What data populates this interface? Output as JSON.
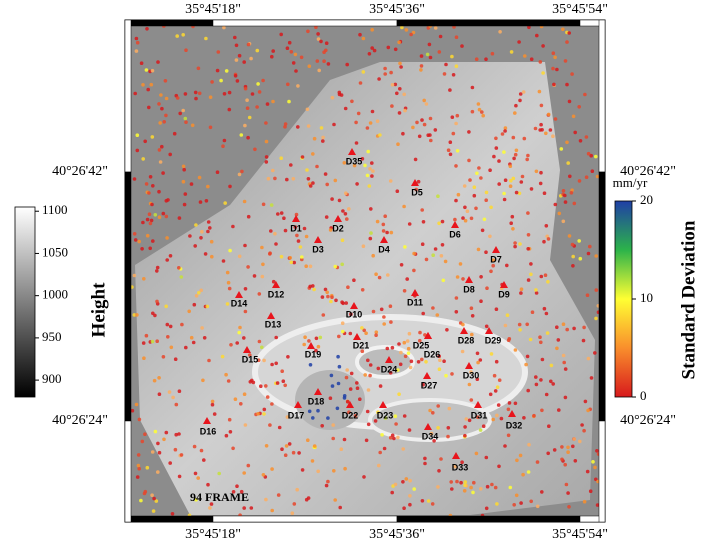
{
  "map": {
    "frame_label": "94 FRAME",
    "top_labels": [
      "35°45'18\"",
      "35°45'36\"",
      "35°45'54\""
    ],
    "bottom_labels": [
      "35°45'18\"",
      "35°45'36\"",
      "35°45'54\""
    ],
    "left_labels": [
      "40°26'42\"",
      "40°26'24\""
    ],
    "right_labels": [
      "40°26'42\"",
      "40°26'24\""
    ],
    "stations": [
      "D35",
      "D5",
      "D1",
      "D2",
      "D3",
      "D4",
      "D6",
      "D7",
      "D8",
      "D9",
      "D11",
      "D12",
      "D14",
      "D10",
      "D13",
      "D28",
      "D29",
      "D25",
      "D26",
      "D21",
      "D19",
      "D15",
      "D24",
      "D30",
      "D27",
      "D18",
      "D17",
      "D22",
      "D23",
      "D31",
      "D32",
      "D34",
      "D16",
      "D33"
    ]
  },
  "height_bar": {
    "title": "Height",
    "lim": [
      880,
      1105
    ],
    "ticks": [
      900,
      950,
      1000,
      1050,
      1100
    ]
  },
  "sd_bar": {
    "title": "Standard Deviation",
    "unit": "mm/yr",
    "lim": [
      0,
      20
    ],
    "ticks": [
      0,
      10,
      20
    ]
  }
}
